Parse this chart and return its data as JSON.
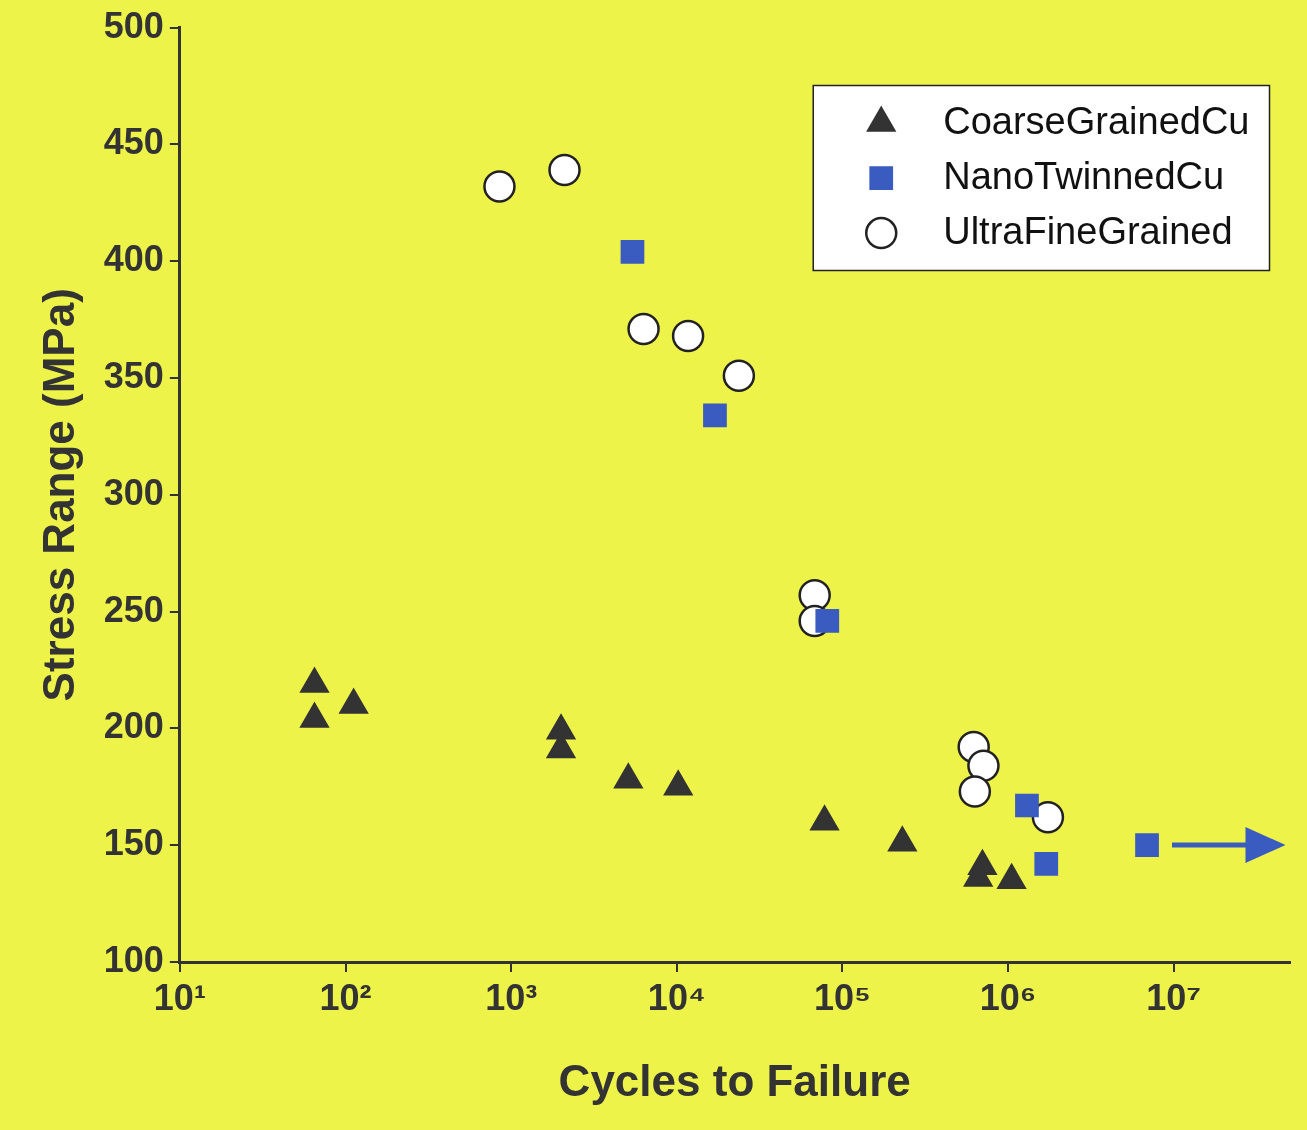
{
  "chart_data": {
    "type": "scatter",
    "xlabel": "Cycles to Failure",
    "ylabel": "Stress Range (MPa)",
    "log": "x",
    "grid": false,
    "legend": "top right",
    "xlim": [
      10,
      50000000
    ],
    "xticks": [
      {
        "value": 10,
        "label": "10¹"
      },
      {
        "value": 100,
        "label": "10²"
      },
      {
        "value": 1000,
        "label": "10³"
      },
      {
        "value": 10000,
        "label": "10⁴"
      },
      {
        "value": 100000,
        "label": "10⁵"
      },
      {
        "value": 1000000,
        "label": "10⁶"
      },
      {
        "value": 10000000,
        "label": "10⁷"
      }
    ],
    "ylim": [
      100,
      500
    ],
    "yticks": [
      100,
      150,
      200,
      250,
      300,
      350,
      400,
      450,
      500
    ],
    "series": [
      {
        "name": "CoarseGrainedCu",
        "color": "#333333",
        "marker": "triangle",
        "x": [
          65,
          65,
          112,
          2000,
          2000,
          5100,
          10200,
          78000,
          230000,
          700000,
          660000,
          1050000
        ],
        "values": [
          219,
          204,
          210,
          199,
          191,
          178,
          175,
          160,
          151,
          141,
          136,
          135
        ]
      },
      {
        "name": "NanoTwinnedCu",
        "color": "#3a5bbf",
        "marker": "square",
        "x": [
          5400,
          17000,
          81000,
          1300000,
          1700000,
          6900000
        ],
        "values": [
          404,
          334,
          246,
          167,
          142,
          150
        ]
      },
      {
        "name": "UltraFineGrained",
        "color": "#ffffff",
        "marker": "circle",
        "x": [
          850,
          2100,
          6300,
          11700,
          23700,
          68000,
          68000,
          620000,
          710000,
          630000,
          1740000
        ],
        "values": [
          432,
          439,
          371,
          368,
          351,
          257,
          246,
          192,
          184,
          173,
          162
        ]
      }
    ]
  }
}
